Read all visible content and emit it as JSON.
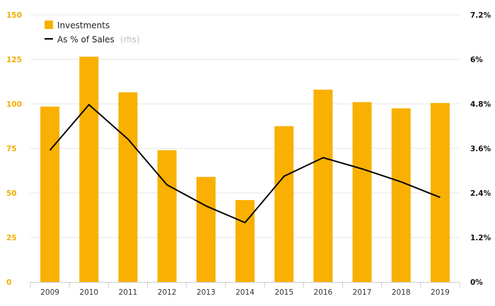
{
  "chart_data": {
    "type": "bar",
    "categories": [
      "2009",
      "2010",
      "2011",
      "2012",
      "2013",
      "2014",
      "2015",
      "2016",
      "2017",
      "2018",
      "2019"
    ],
    "series": [
      {
        "name": "Investments",
        "type": "bar",
        "axis": "left",
        "color": "#f9b000",
        "values": [
          98.5,
          126.5,
          106.5,
          74,
          59,
          46,
          87.5,
          108,
          101,
          97.5,
          100.5
        ]
      },
      {
        "name": "As % of Sales",
        "type": "line",
        "axis": "right",
        "color": "#000000",
        "values": [
          3.55,
          4.78,
          3.85,
          2.62,
          2.05,
          1.6,
          2.85,
          3.35,
          3.05,
          2.7,
          2.28
        ]
      }
    ],
    "legend": {
      "position": "top-left",
      "items": [
        {
          "label": "Investments",
          "note": ""
        },
        {
          "label": "As % of Sales",
          "note": "(rhs)"
        }
      ]
    },
    "y_left": {
      "range": [
        0,
        150
      ],
      "ticks": [
        0,
        25,
        50,
        75,
        100,
        125,
        150
      ],
      "tick_labels": [
        "0",
        "25",
        "50",
        "75",
        "100",
        "125",
        "150"
      ],
      "color": "#f2ad00"
    },
    "y_right": {
      "range": [
        0,
        7.2
      ],
      "ticks": [
        0,
        1.2,
        2.4,
        3.6,
        4.8,
        6,
        7.2
      ],
      "tick_labels": [
        "0%",
        "1.2%",
        "2.4%",
        "3.6%",
        "4.8%",
        "6%",
        "7.2%"
      ]
    },
    "grid": true,
    "title": "",
    "xlabel": "",
    "ylabel": ""
  }
}
